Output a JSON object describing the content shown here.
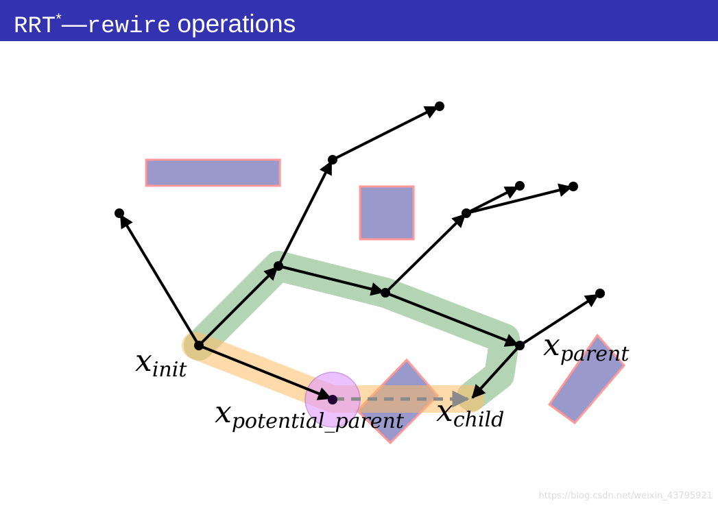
{
  "header": {
    "title_part1": "RRT",
    "title_star": "*",
    "title_dash": "—",
    "title_part2": "rewire",
    "title_part3": "operations"
  },
  "colors": {
    "header_bg": "#3333b2",
    "obstacle_fill": "#9999cc",
    "obstacle_stroke": "#ff9999",
    "current_path": "#8bbf8b",
    "potential_path": "#ffbb66",
    "neighborhood_circle": "#dd99ff"
  },
  "labels": {
    "x_init": {
      "main": "x",
      "sub": "init"
    },
    "x_parent": {
      "main": "x",
      "sub": "parent"
    },
    "x_potential_parent": {
      "main": "x",
      "sub": "potential_parent"
    },
    "x_child": {
      "main": "x",
      "sub": "child"
    }
  },
  "watermark": "https://blog.csdn.net/weixin_43795921"
}
